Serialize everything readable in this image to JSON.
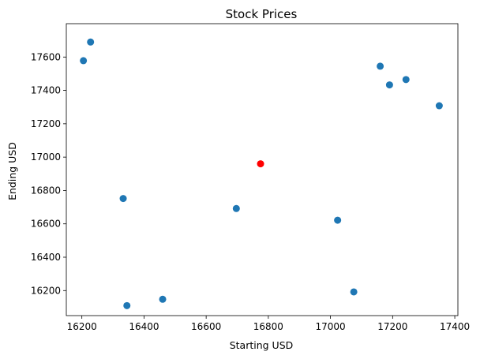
{
  "chart_data": {
    "type": "scatter",
    "title": "Stock Prices",
    "xlabel": "Starting USD",
    "ylabel": "Ending USD",
    "xlim": [
      16150,
      17410
    ],
    "ylim": [
      16050,
      17800
    ],
    "xticks": [
      16200,
      16400,
      16600,
      16800,
      17000,
      17200,
      17400
    ],
    "yticks": [
      16200,
      16400,
      16600,
      16800,
      17000,
      17200,
      17400,
      17600
    ],
    "grid": false,
    "legend": "none",
    "colors": {
      "default": "#1f77b4",
      "highlight": "#ff0000"
    },
    "points": [
      {
        "x": 16205,
        "y": 17578,
        "highlight": false
      },
      {
        "x": 16228,
        "y": 17690,
        "highlight": false
      },
      {
        "x": 16333,
        "y": 16752,
        "highlight": false
      },
      {
        "x": 16345,
        "y": 16110,
        "highlight": false
      },
      {
        "x": 16460,
        "y": 16148,
        "highlight": false
      },
      {
        "x": 16697,
        "y": 16692,
        "highlight": false
      },
      {
        "x": 16775,
        "y": 16960,
        "highlight": true
      },
      {
        "x": 17023,
        "y": 16622,
        "highlight": false
      },
      {
        "x": 17075,
        "y": 16192,
        "highlight": false
      },
      {
        "x": 17160,
        "y": 17545,
        "highlight": false
      },
      {
        "x": 17190,
        "y": 17433,
        "highlight": false
      },
      {
        "x": 17243,
        "y": 17465,
        "highlight": false
      },
      {
        "x": 17350,
        "y": 17308,
        "highlight": false
      }
    ]
  }
}
